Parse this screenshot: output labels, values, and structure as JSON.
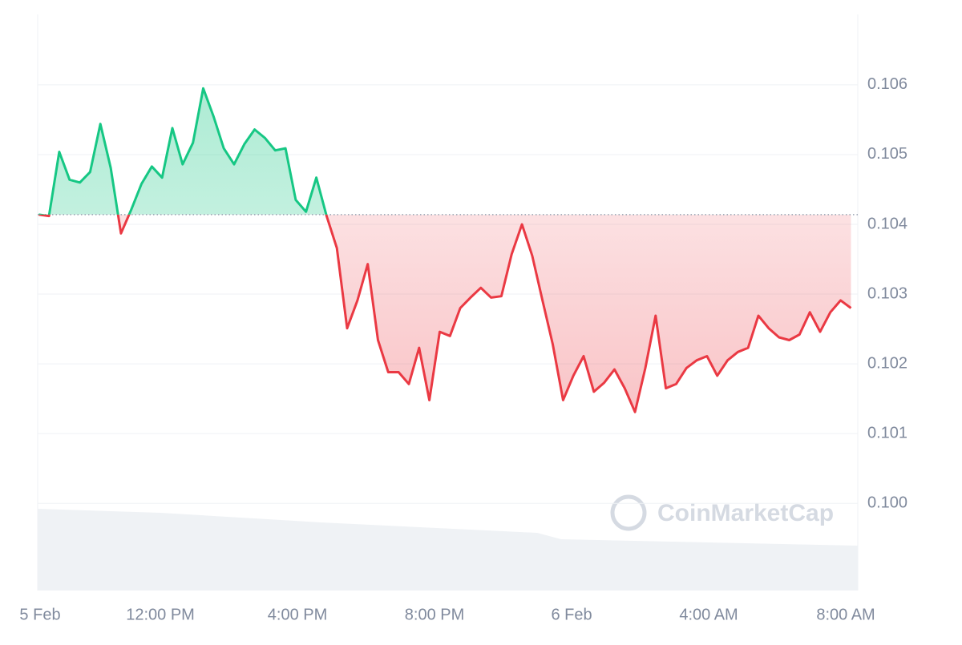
{
  "chart_data": {
    "type": "line",
    "watermark": "CoinMarketCap",
    "baseline": 0.10414,
    "up_color": "#16c784",
    "down_color": "#ea3943",
    "ylim": [
      0.09875,
      0.10701
    ],
    "yticks": [
      {
        "value": 0.1,
        "label": "0.100"
      },
      0.101,
      0.102,
      0.103,
      0.104,
      0.105,
      0.106
    ],
    "xlim": [
      8.42,
      32.35
    ],
    "xticks": [
      {
        "value": 8.42,
        "label": "5 Feb"
      },
      {
        "value": 12,
        "label": "12:00 PM"
      },
      {
        "value": 16,
        "label": "4:00 PM"
      },
      {
        "value": 20,
        "label": "8:00 PM"
      },
      {
        "value": 24,
        "label": "6 Feb"
      },
      {
        "value": 28,
        "label": "4:00 AM"
      },
      {
        "value": 32,
        "label": "8:00 AM"
      }
    ],
    "grid": true,
    "x": [
      8.45,
      8.75,
      9.05,
      9.35,
      9.65,
      9.95,
      10.25,
      10.55,
      10.85,
      11.15,
      11.45,
      11.75,
      12.05,
      12.35,
      12.65,
      12.95,
      13.25,
      13.55,
      13.85,
      14.15,
      14.45,
      14.75,
      15.05,
      15.35,
      15.65,
      15.95,
      16.25,
      16.55,
      16.85,
      17.15,
      17.45,
      17.75,
      18.05,
      18.35,
      18.65,
      18.95,
      19.25,
      19.55,
      19.85,
      20.15,
      20.45,
      20.75,
      21.05,
      21.35,
      21.65,
      21.95,
      22.25,
      22.55,
      22.85,
      23.15,
      23.45,
      23.75,
      24.05,
      24.35,
      24.65,
      24.95,
      25.25,
      25.55,
      25.85,
      26.15,
      26.45,
      26.75,
      27.05,
      27.35,
      27.65,
      27.95,
      28.25,
      28.55,
      28.85,
      29.15,
      29.45,
      29.75,
      30.05,
      30.35,
      30.65,
      30.95,
      31.25,
      31.55,
      31.85,
      32.15
    ],
    "values": [
      0.10414,
      0.10412,
      0.10504,
      0.10464,
      0.1046,
      0.10475,
      0.10544,
      0.10481,
      0.10387,
      0.10421,
      0.10458,
      0.10483,
      0.10467,
      0.10538,
      0.10486,
      0.10517,
      0.10595,
      0.10555,
      0.10509,
      0.10486,
      0.10515,
      0.10536,
      0.10524,
      0.10506,
      0.10509,
      0.10435,
      0.10418,
      0.10467,
      0.10412,
      0.10366,
      0.10251,
      0.10291,
      0.10343,
      0.10234,
      0.10188,
      0.10188,
      0.10171,
      0.10223,
      0.10148,
      0.10246,
      0.1024,
      0.1028,
      0.10295,
      0.10309,
      0.10295,
      0.10297,
      0.10357,
      0.104,
      0.10355,
      0.10291,
      0.10228,
      0.10148,
      0.10183,
      0.10211,
      0.1016,
      0.10173,
      0.10192,
      0.10165,
      0.10131,
      0.10194,
      0.10269,
      0.10165,
      0.10171,
      0.10194,
      0.10205,
      0.10211,
      0.10183,
      0.10205,
      0.10217,
      0.10223,
      0.10269,
      0.10251,
      0.10238,
      0.10234,
      0.10242,
      0.10274,
      0.10246,
      0.10274,
      0.10291,
      0.1028
    ]
  }
}
